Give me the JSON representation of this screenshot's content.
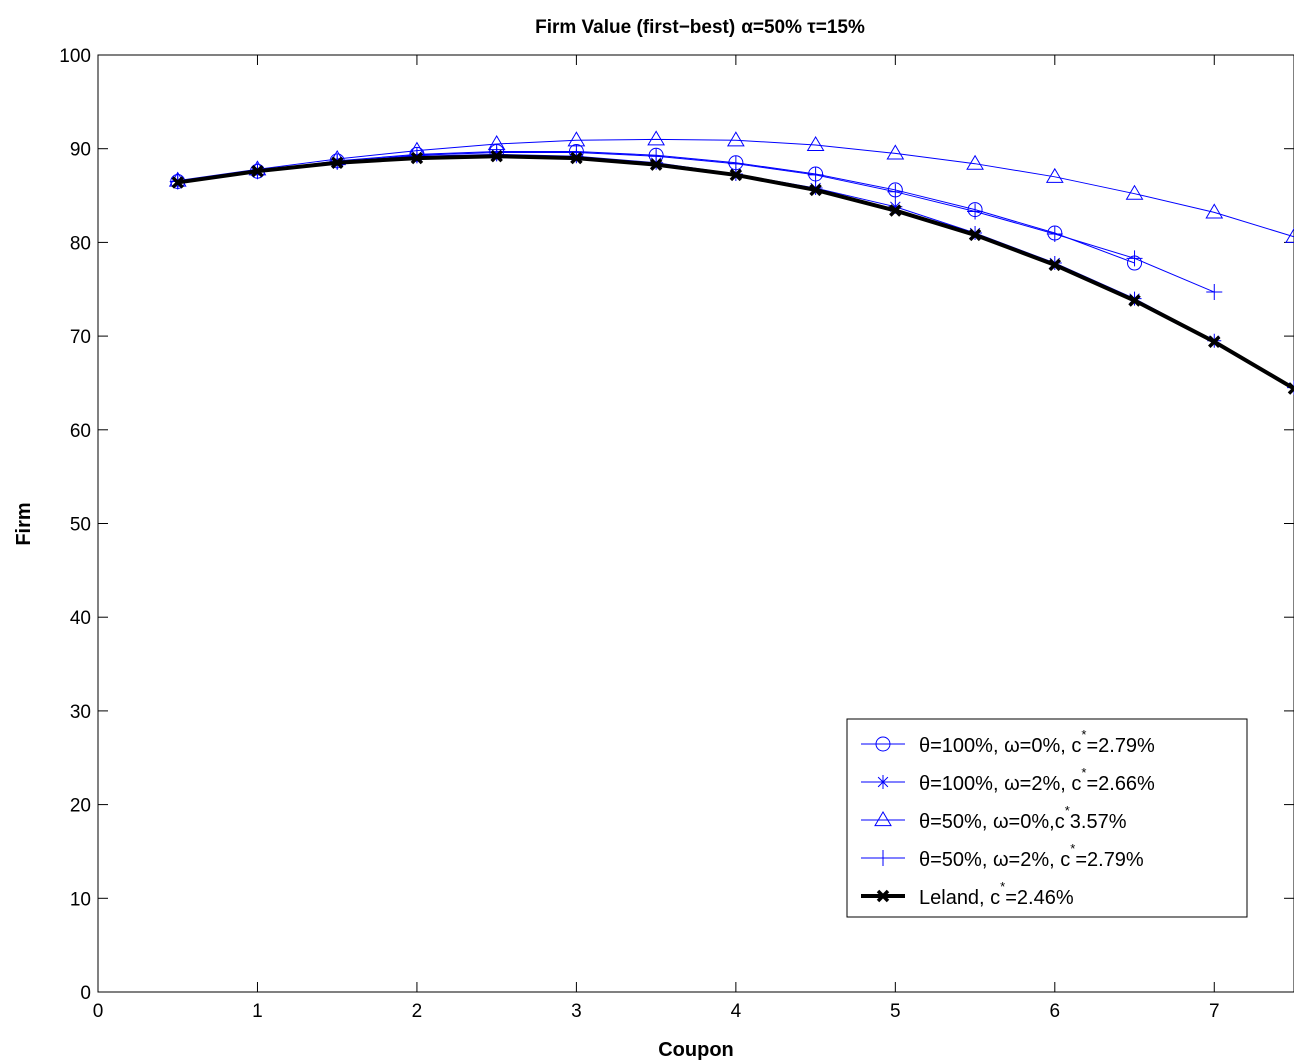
{
  "chart_data": {
    "type": "line",
    "title": "Firm Value (first−best)",
    "title_params": "α=50% τ=15%",
    "xlabel": "Coupon",
    "ylabel": "Firm",
    "xlim": [
      0,
      7.5
    ],
    "ylim": [
      0,
      100
    ],
    "xticks": [
      0,
      1,
      2,
      3,
      4,
      5,
      6,
      7
    ],
    "yticks": [
      0,
      10,
      20,
      30,
      40,
      50,
      60,
      70,
      80,
      90,
      100
    ],
    "grid": false,
    "legend_position": "bottom-right",
    "series": [
      {
        "name": "θ=100%, ω=0%, c*=2.79%",
        "label_main": "θ=100%, ω=0%, c",
        "label_sup": "*",
        "label_tail": "=2.79%",
        "marker": "circle",
        "color": "#0000ff",
        "x": [
          0.5,
          1,
          1.5,
          2,
          2.5,
          3,
          3.5,
          4,
          4.5,
          5,
          5.5,
          6,
          6.5
        ],
        "y": [
          86.5,
          87.6,
          88.7,
          89.4,
          89.7,
          89.7,
          89.3,
          88.5,
          87.3,
          85.6,
          83.5,
          81.0,
          77.8
        ]
      },
      {
        "name": "θ=100%, ω=2%, c*=2.66%",
        "label_main": "θ=100%, ω=2%, c",
        "label_sup": "*",
        "label_tail": "=2.66%",
        "marker": "asterisk",
        "color": "#0000ff",
        "x": [
          0.5,
          1,
          1.5,
          2,
          2.5,
          3,
          3.5,
          4,
          4.5,
          5,
          5.5,
          6,
          6.5,
          7,
          7.5
        ],
        "y": [
          86.5,
          87.6,
          88.6,
          89.2,
          89.4,
          89.2,
          88.5,
          87.3,
          85.8,
          83.8,
          81.0,
          77.8,
          74.0,
          69.5,
          64.5
        ]
      },
      {
        "name": "θ=50%, ω=0%,c*3.57%",
        "label_main": "θ=50%, ω=0%,c",
        "label_sup": "*",
        "label_tail": "3.57%",
        "marker": "triangle",
        "color": "#0000ff",
        "x": [
          0.5,
          1,
          1.5,
          2,
          2.5,
          3,
          3.5,
          4,
          4.5,
          5,
          5.5,
          6,
          6.5,
          7,
          7.5
        ],
        "y": [
          86.6,
          87.8,
          88.9,
          89.8,
          90.5,
          90.9,
          91.0,
          90.9,
          90.4,
          89.5,
          88.4,
          87.0,
          85.2,
          83.2,
          80.6
        ]
      },
      {
        "name": "θ=50%, ω=2%, c*=2.79%",
        "label_main": "θ=50%, ω=2%, c",
        "label_sup": "*",
        "label_tail": "=2.79%",
        "marker": "plus",
        "color": "#0000ff",
        "x": [
          0.5,
          1,
          1.5,
          2,
          2.5,
          3,
          3.5,
          4,
          4.5,
          5,
          5.5,
          6,
          6.5,
          7
        ],
        "y": [
          86.5,
          87.6,
          88.6,
          89.3,
          89.6,
          89.6,
          89.2,
          88.4,
          87.2,
          85.4,
          83.3,
          80.9,
          78.3,
          74.7
        ]
      },
      {
        "name": "Leland, c*=2.46%",
        "label_main": "Leland, c",
        "label_sup": "*",
        "label_tail": "=2.46%",
        "marker": "x-bold",
        "color": "#000000",
        "x": [
          0.5,
          1,
          1.5,
          2,
          2.5,
          3,
          3.5,
          4,
          4.5,
          5,
          5.5,
          6,
          6.5,
          7,
          7.5
        ],
        "y": [
          86.4,
          87.6,
          88.5,
          89.0,
          89.2,
          89.0,
          88.3,
          87.2,
          85.6,
          83.4,
          80.8,
          77.6,
          73.8,
          69.4,
          64.4
        ]
      }
    ]
  }
}
